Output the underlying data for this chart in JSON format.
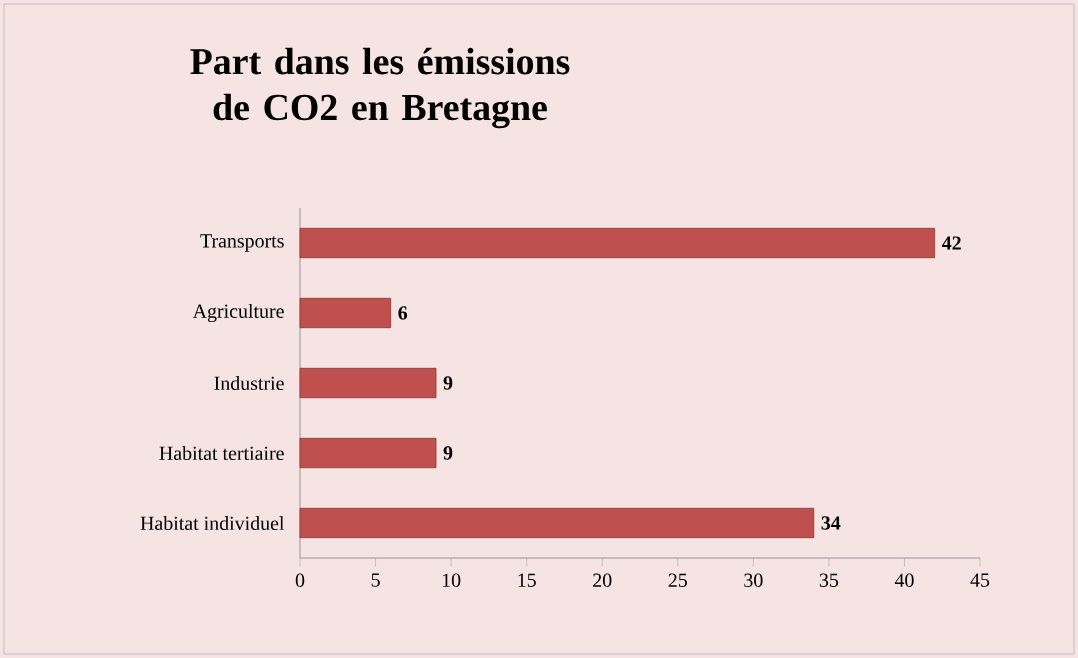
{
  "chart_data": {
    "type": "bar",
    "orientation": "horizontal",
    "title": "Part dans les émissions de CO2 en Bretagne",
    "categories": [
      "Transports",
      "Agriculture",
      "Industrie",
      "Habitat tertiaire",
      "Habitat individuel"
    ],
    "values": [
      42,
      6,
      9,
      9,
      34
    ],
    "color": "#c0504d",
    "xlim": [
      0,
      45
    ],
    "xticks": [
      0,
      5,
      10,
      15,
      20,
      25,
      30,
      35,
      40,
      45
    ],
    "data_labels": true
  }
}
